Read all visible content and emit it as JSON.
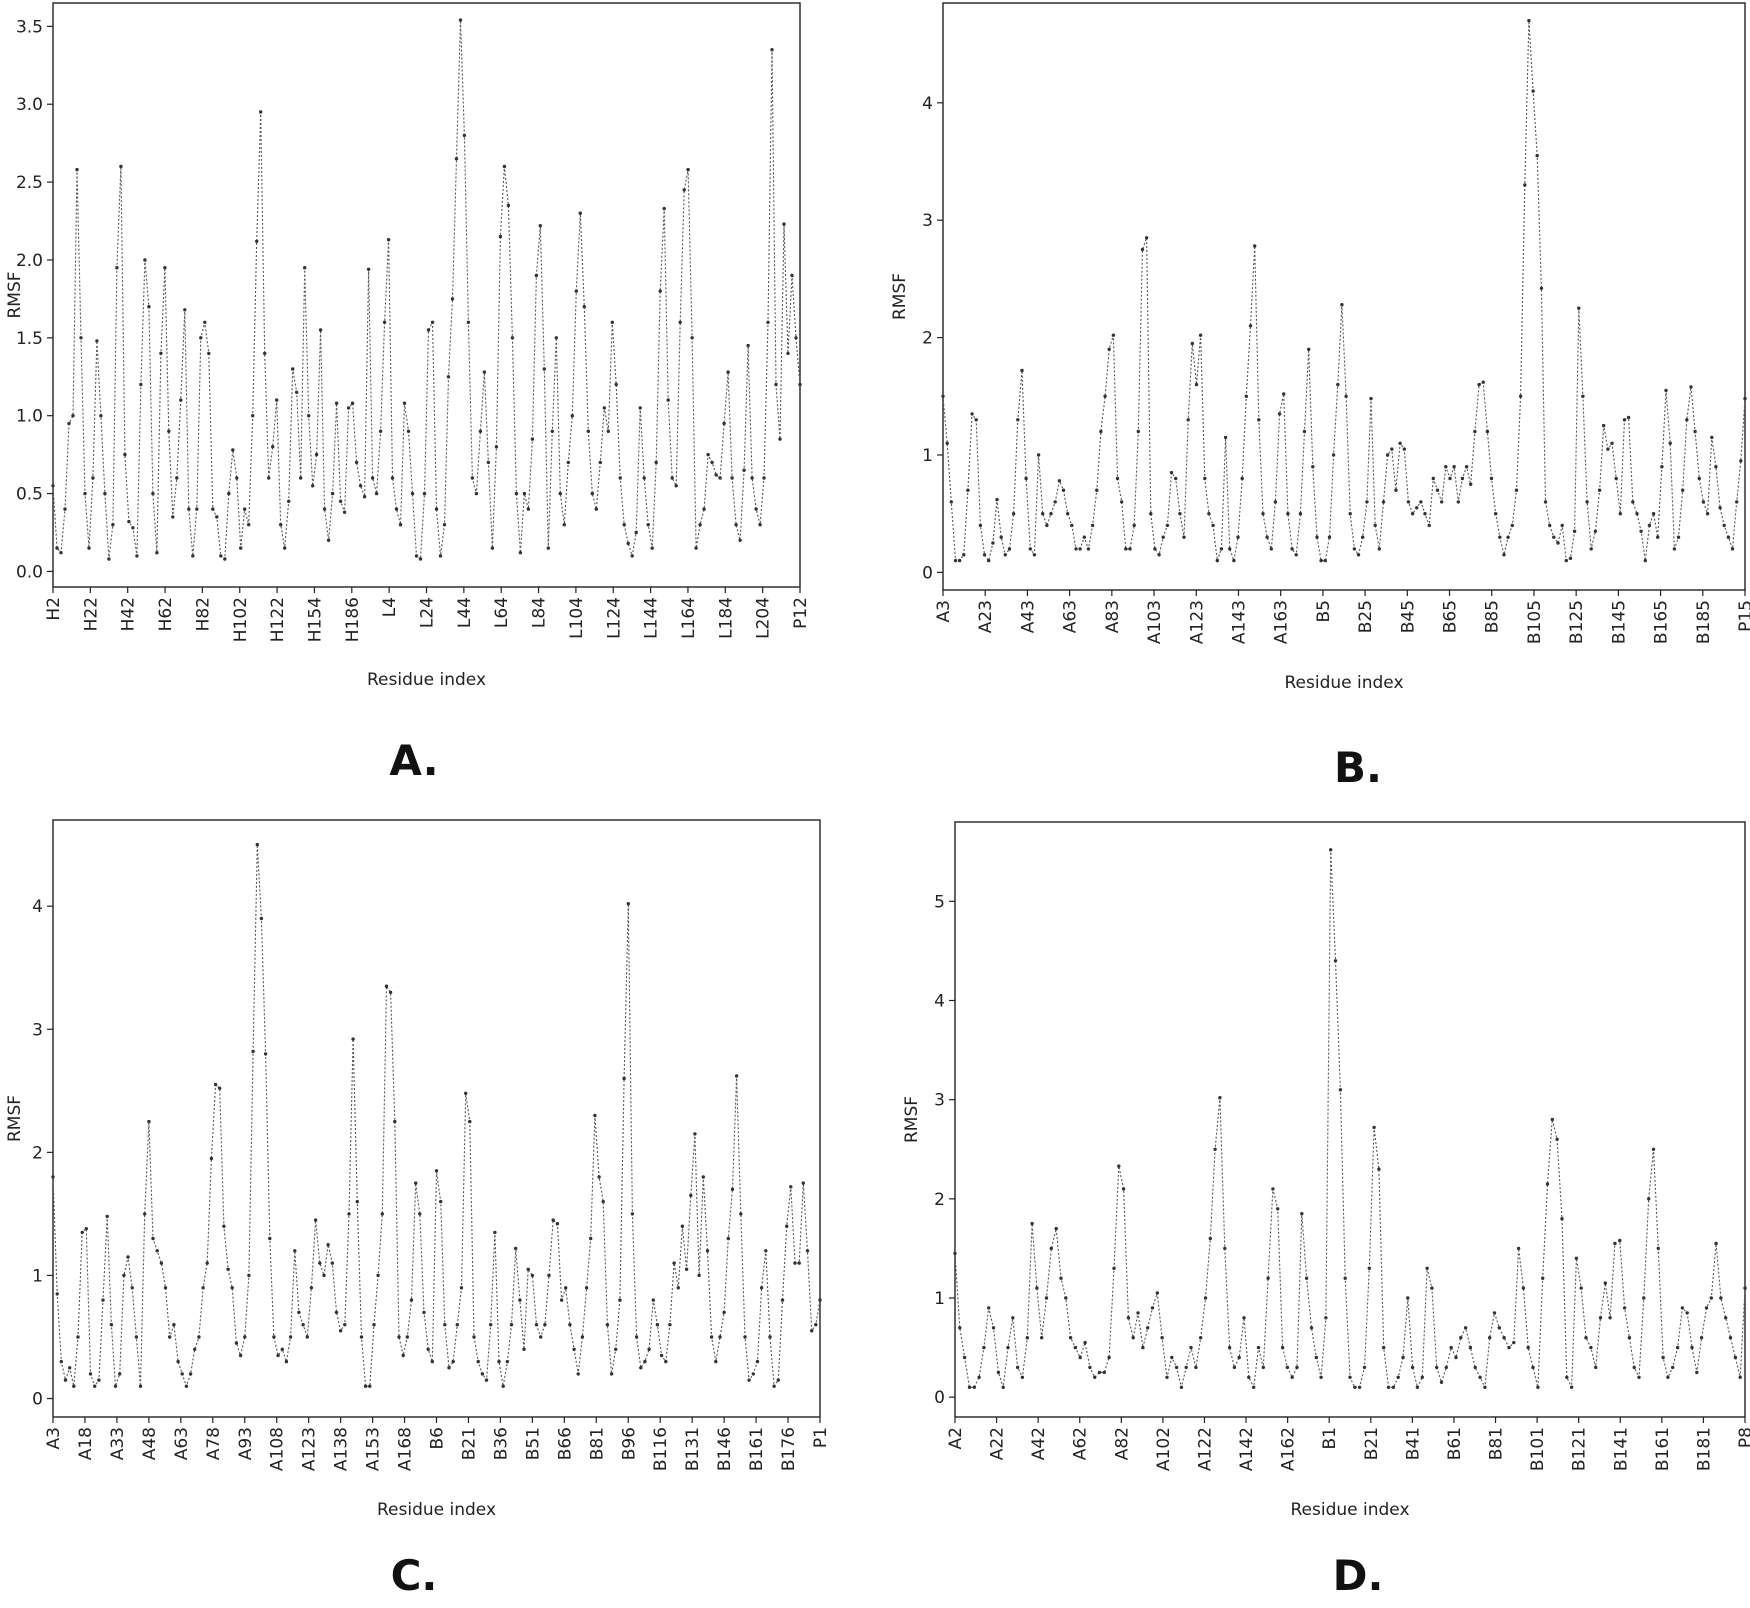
{
  "chart_data": [
    {
      "panel": "A.",
      "type": "line",
      "xlabel": "Residue index",
      "ylabel": "RMSF",
      "ylim": [
        -0.1,
        3.65
      ],
      "yticks": [
        "0.0",
        "0.5",
        "1.0",
        "1.5",
        "2.0",
        "2.5",
        "3.0",
        "3.5"
      ],
      "ytick_values": [
        0,
        0.5,
        1,
        1.5,
        2,
        2.5,
        3,
        3.5
      ],
      "xticks": [
        "H2",
        "H22",
        "H42",
        "H62",
        "H82",
        "H102",
        "H122",
        "H154",
        "H186",
        "L4",
        "L24",
        "L44",
        "L64",
        "L84",
        "L104",
        "L124",
        "L144",
        "L164",
        "L184",
        "L204",
        "P12"
      ],
      "series": [
        {
          "values": [
            0.55,
            0.15,
            0.12,
            0.4,
            0.95,
            1.0,
            2.58,
            1.5,
            0.5,
            0.15,
            0.6,
            1.48,
            1.0,
            0.5,
            0.08,
            0.3,
            1.95,
            2.6,
            0.75,
            0.32,
            0.28,
            0.1,
            1.2,
            2.0,
            1.7,
            0.5,
            0.12,
            1.4,
            1.95,
            0.9,
            0.35,
            0.6,
            1.1,
            1.68,
            0.4,
            0.1,
            0.4,
            1.5,
            1.6,
            1.4,
            0.4,
            0.35,
            0.1,
            0.08,
            0.5,
            0.78,
            0.6,
            0.15,
            0.4,
            0.3,
            1.0,
            2.12,
            2.95,
            1.4,
            0.6,
            0.8,
            1.1,
            0.3,
            0.15,
            0.45,
            1.3,
            1.15,
            0.6,
            1.95,
            1.0,
            0.55,
            0.75,
            1.55,
            0.4,
            0.2,
            0.5,
            1.08,
            0.45,
            0.38,
            1.05,
            1.08,
            0.7,
            0.55,
            0.48,
            1.94,
            0.6,
            0.5,
            0.9,
            1.6,
            2.13,
            0.6,
            0.4,
            0.3,
            1.08,
            0.9,
            0.5,
            0.1,
            0.08,
            0.5,
            1.55,
            1.6,
            0.4,
            0.1,
            0.3,
            1.25,
            1.75,
            2.65,
            3.54,
            2.8,
            1.6,
            0.6,
            0.5,
            0.9,
            1.28,
            0.7,
            0.15,
            0.8,
            2.15,
            2.6,
            2.35,
            1.5,
            0.5,
            0.12,
            0.5,
            0.4,
            0.85,
            1.9,
            2.22,
            1.3,
            0.15,
            0.9,
            1.5,
            0.5,
            0.3,
            0.7,
            1.0,
            1.8,
            2.3,
            1.7,
            0.9,
            0.5,
            0.4,
            0.7,
            1.05,
            0.9,
            1.6,
            1.2,
            0.6,
            0.3,
            0.18,
            0.1,
            0.25,
            1.05,
            0.6,
            0.3,
            0.15,
            0.7,
            1.8,
            2.33,
            1.1,
            0.6,
            0.55,
            1.6,
            2.45,
            2.58,
            1.5,
            0.15,
            0.3,
            0.4,
            0.75,
            0.7,
            0.62,
            0.6,
            0.95,
            1.28,
            0.6,
            0.3,
            0.2,
            0.65,
            1.45,
            0.6,
            0.4,
            0.3,
            0.6,
            1.6,
            3.35,
            1.2,
            0.85,
            2.23,
            1.4,
            1.9,
            1.5,
            1.2
          ]
        }
      ]
    },
    {
      "panel": "B.",
      "type": "line",
      "xlabel": "Residue index",
      "ylabel": "RMSF",
      "ylim": [
        -0.15,
        4.85
      ],
      "yticks": [
        "0",
        "1",
        "2",
        "3",
        "4"
      ],
      "ytick_values": [
        0,
        1,
        2,
        3,
        4
      ],
      "xticks": [
        "A3",
        "A23",
        "A43",
        "A63",
        "A83",
        "A103",
        "A123",
        "A143",
        "A163",
        "B5",
        "B25",
        "B45",
        "B65",
        "B85",
        "B105",
        "B125",
        "B145",
        "B165",
        "B185",
        "P15"
      ],
      "series": [
        {
          "values": [
            1.5,
            1.1,
            0.6,
            0.1,
            0.1,
            0.15,
            0.7,
            1.35,
            1.3,
            0.4,
            0.15,
            0.1,
            0.25,
            0.62,
            0.3,
            0.15,
            0.2,
            0.5,
            1.3,
            1.72,
            0.8,
            0.2,
            0.15,
            1.0,
            0.5,
            0.4,
            0.5,
            0.6,
            0.78,
            0.7,
            0.5,
            0.4,
            0.2,
            0.2,
            0.3,
            0.2,
            0.4,
            0.7,
            1.2,
            1.5,
            1.9,
            2.02,
            0.8,
            0.6,
            0.2,
            0.2,
            0.4,
            1.2,
            2.75,
            2.85,
            0.5,
            0.2,
            0.15,
            0.3,
            0.4,
            0.85,
            0.8,
            0.5,
            0.3,
            1.3,
            1.95,
            1.6,
            2.02,
            0.8,
            0.5,
            0.4,
            0.1,
            0.2,
            1.15,
            0.2,
            0.1,
            0.3,
            0.8,
            1.5,
            2.1,
            2.78,
            1.3,
            0.5,
            0.3,
            0.2,
            0.6,
            1.35,
            1.52,
            0.5,
            0.2,
            0.15,
            0.5,
            1.2,
            1.9,
            0.9,
            0.3,
            0.1,
            0.1,
            0.3,
            1.0,
            1.6,
            2.28,
            1.5,
            0.5,
            0.2,
            0.15,
            0.3,
            0.6,
            1.48,
            0.4,
            0.2,
            0.6,
            1.0,
            1.05,
            0.7,
            1.1,
            1.05,
            0.6,
            0.5,
            0.55,
            0.6,
            0.5,
            0.4,
            0.8,
            0.7,
            0.6,
            0.9,
            0.8,
            0.9,
            0.6,
            0.8,
            0.9,
            0.75,
            1.2,
            1.6,
            1.62,
            1.2,
            0.8,
            0.5,
            0.3,
            0.15,
            0.3,
            0.4,
            0.7,
            1.5,
            3.3,
            4.7,
            4.1,
            3.55,
            2.42,
            0.6,
            0.4,
            0.3,
            0.25,
            0.4,
            0.1,
            0.12,
            0.35,
            2.25,
            1.5,
            0.6,
            0.2,
            0.35,
            0.7,
            1.25,
            1.05,
            1.1,
            0.8,
            0.5,
            1.3,
            1.32,
            0.6,
            0.5,
            0.35,
            0.1,
            0.4,
            0.5,
            0.3,
            0.9,
            1.55,
            1.1,
            0.2,
            0.3,
            0.7,
            1.3,
            1.58,
            1.2,
            0.8,
            0.6,
            0.5,
            1.15,
            0.9,
            0.55,
            0.4,
            0.3,
            0.2,
            0.6,
            0.95,
            1.48
          ]
        }
      ]
    },
    {
      "panel": "C.",
      "type": "line",
      "xlabel": "Residue index",
      "ylabel": "RMSF",
      "ylim": [
        -0.15,
        4.7
      ],
      "yticks": [
        "0",
        "1",
        "2",
        "3",
        "4"
      ],
      "ytick_values": [
        0,
        1,
        2,
        3,
        4
      ],
      "xticks": [
        "A3",
        "A18",
        "A33",
        "A48",
        "A63",
        "A78",
        "A93",
        "A108",
        "A123",
        "A138",
        "A153",
        "A168",
        "B6",
        "B21",
        "B36",
        "B51",
        "B66",
        "B81",
        "B96",
        "B116",
        "B131",
        "B146",
        "B161",
        "B176",
        "P1"
      ],
      "series": [
        {
          "values": [
            1.8,
            0.85,
            0.3,
            0.15,
            0.25,
            0.1,
            0.5,
            1.35,
            1.38,
            0.2,
            0.1,
            0.15,
            0.8,
            1.48,
            0.6,
            0.1,
            0.2,
            1.0,
            1.15,
            0.9,
            0.5,
            0.1,
            1.5,
            2.25,
            1.3,
            1.2,
            1.1,
            0.9,
            0.5,
            0.6,
            0.3,
            0.2,
            0.1,
            0.2,
            0.4,
            0.5,
            0.9,
            1.1,
            1.95,
            2.55,
            2.52,
            1.4,
            1.05,
            0.9,
            0.45,
            0.35,
            0.5,
            1.0,
            2.82,
            4.5,
            3.9,
            2.8,
            1.3,
            0.5,
            0.35,
            0.4,
            0.3,
            0.5,
            1.2,
            0.7,
            0.6,
            0.5,
            0.9,
            1.45,
            1.1,
            1.0,
            1.25,
            1.1,
            0.7,
            0.55,
            0.6,
            1.5,
            2.92,
            1.6,
            0.5,
            0.1,
            0.1,
            0.6,
            1.0,
            1.5,
            3.35,
            3.3,
            2.25,
            0.5,
            0.35,
            0.5,
            0.8,
            1.75,
            1.5,
            0.7,
            0.4,
            0.3,
            1.85,
            1.6,
            0.6,
            0.25,
            0.3,
            0.6,
            0.9,
            2.48,
            2.25,
            0.5,
            0.3,
            0.2,
            0.15,
            0.6,
            1.35,
            0.3,
            0.1,
            0.3,
            0.6,
            1.22,
            0.8,
            0.4,
            1.05,
            1.0,
            0.6,
            0.5,
            0.6,
            1.0,
            1.45,
            1.42,
            0.8,
            0.9,
            0.6,
            0.4,
            0.2,
            0.5,
            0.9,
            1.3,
            2.3,
            1.8,
            1.6,
            0.6,
            0.2,
            0.4,
            0.8,
            2.6,
            4.02,
            1.5,
            0.5,
            0.25,
            0.3,
            0.4,
            0.8,
            0.6,
            0.35,
            0.3,
            0.6,
            1.1,
            0.9,
            1.4,
            1.05,
            1.65,
            2.15,
            1.0,
            1.8,
            1.2,
            0.5,
            0.3,
            0.5,
            0.7,
            1.3,
            1.7,
            2.62,
            1.5,
            0.5,
            0.15,
            0.2,
            0.3,
            0.9,
            1.2,
            0.5,
            0.1,
            0.15,
            0.8,
            1.4,
            1.72,
            1.1,
            1.1,
            1.75,
            1.2,
            0.55,
            0.6,
            0.8
          ]
        }
      ]
    },
    {
      "panel": "D.",
      "type": "line",
      "xlabel": "Residue index",
      "ylabel": "RMSF",
      "ylim": [
        -0.2,
        5.8
      ],
      "yticks": [
        "0",
        "1",
        "2",
        "3",
        "4",
        "5"
      ],
      "ytick_values": [
        0,
        1,
        2,
        3,
        4,
        5
      ],
      "xticks": [
        "A2",
        "A22",
        "A42",
        "A62",
        "A82",
        "A102",
        "A122",
        "A142",
        "A162",
        "B1",
        "B21",
        "B41",
        "B61",
        "B81",
        "B101",
        "B121",
        "B141",
        "B161",
        "B181",
        "P8"
      ],
      "series": [
        {
          "values": [
            1.45,
            0.7,
            0.4,
            0.1,
            0.1,
            0.2,
            0.5,
            0.9,
            0.7,
            0.25,
            0.1,
            0.5,
            0.8,
            0.3,
            0.2,
            0.6,
            1.75,
            1.1,
            0.6,
            1.0,
            1.5,
            1.7,
            1.2,
            1.0,
            0.6,
            0.5,
            0.4,
            0.55,
            0.3,
            0.2,
            0.25,
            0.25,
            0.4,
            1.3,
            2.33,
            2.1,
            0.8,
            0.6,
            0.85,
            0.5,
            0.7,
            0.9,
            1.05,
            0.6,
            0.2,
            0.4,
            0.3,
            0.1,
            0.3,
            0.5,
            0.3,
            0.6,
            1.0,
            1.6,
            2.5,
            3.02,
            1.5,
            0.5,
            0.3,
            0.4,
            0.8,
            0.2,
            0.1,
            0.5,
            0.3,
            1.2,
            2.1,
            1.9,
            0.5,
            0.3,
            0.2,
            0.3,
            1.85,
            1.2,
            0.7,
            0.4,
            0.2,
            0.8,
            5.52,
            4.4,
            3.1,
            1.2,
            0.2,
            0.1,
            0.1,
            0.3,
            1.3,
            2.72,
            2.3,
            0.5,
            0.1,
            0.1,
            0.2,
            0.4,
            1.0,
            0.3,
            0.1,
            0.2,
            1.3,
            1.1,
            0.3,
            0.15,
            0.3,
            0.5,
            0.4,
            0.6,
            0.7,
            0.5,
            0.3,
            0.2,
            0.1,
            0.6,
            0.85,
            0.7,
            0.6,
            0.5,
            0.55,
            1.5,
            1.1,
            0.5,
            0.3,
            0.1,
            1.2,
            2.15,
            2.8,
            2.6,
            1.8,
            0.2,
            0.1,
            1.4,
            1.1,
            0.6,
            0.5,
            0.3,
            0.8,
            1.15,
            0.8,
            1.55,
            1.58,
            0.9,
            0.6,
            0.3,
            0.2,
            1.0,
            2.0,
            2.5,
            1.5,
            0.4,
            0.2,
            0.3,
            0.5,
            0.9,
            0.85,
            0.5,
            0.25,
            0.6,
            0.9,
            1.0,
            1.55,
            1.0,
            0.8,
            0.6,
            0.4,
            0.2,
            1.1
          ]
        }
      ]
    }
  ]
}
